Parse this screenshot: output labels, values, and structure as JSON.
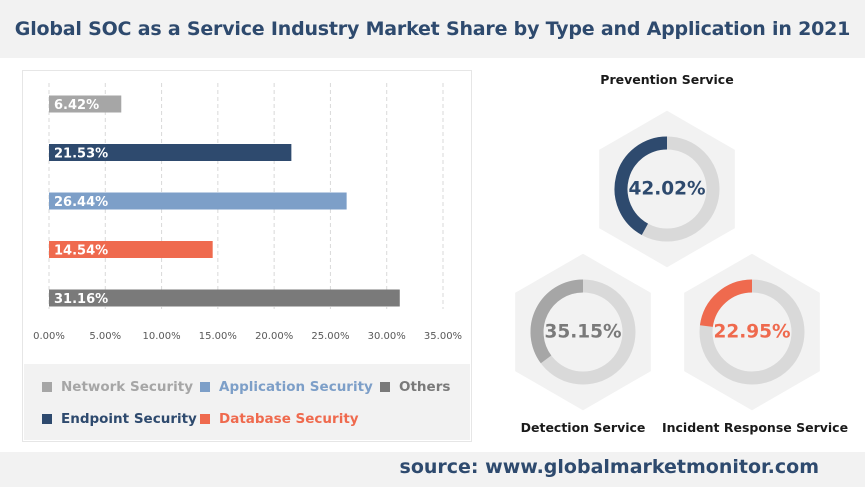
{
  "title": "Global SOC as a Service Industry Market Share by Type and Application in 2021",
  "source": "source: www.globalmarketmonitor.com",
  "colors": {
    "network": "#a6a6a6",
    "endpoint": "#2e4a6e",
    "application": "#7d9fc8",
    "database": "#ef6a4e",
    "others": "#7a7a7a",
    "track": "#d9d9d9",
    "hexagon": "#f2f2f2"
  },
  "legend": [
    {
      "label": "Network Security",
      "color": "#a6a6a6"
    },
    {
      "label": "Application Security",
      "color": "#7d9fc8"
    },
    {
      "label": "Others",
      "color": "#7a7a7a"
    },
    {
      "label": "Endpoint Security",
      "color": "#2e4a6e"
    },
    {
      "label": "Database Security",
      "color": "#ef6a4e"
    }
  ],
  "chart_data": [
    {
      "type": "bar",
      "orientation": "horizontal",
      "title": "",
      "categories": [
        "Network Security",
        "Endpoint Security",
        "Application Security",
        "Database Security",
        "Others"
      ],
      "values": [
        6.42,
        21.53,
        26.44,
        14.54,
        31.16
      ],
      "data_labels": [
        "6.42%",
        "21.53%",
        "26.44%",
        "14.54%",
        "31.16%"
      ],
      "colors": [
        "#a6a6a6",
        "#2e4a6e",
        "#7d9fc8",
        "#ef6a4e",
        "#7a7a7a"
      ],
      "xlim": [
        0,
        35
      ],
      "x_ticks": [
        "0.00%",
        "5.00%",
        "10.00%",
        "15.00%",
        "20.00%",
        "25.00%",
        "30.00%",
        "35.00%"
      ],
      "x_tick_values": [
        0,
        5,
        10,
        15,
        20,
        25,
        30,
        35
      ],
      "grid": "vertical dashed",
      "legend": "bottom"
    },
    {
      "type": "pie",
      "style": "donut",
      "title": "Prevention Service",
      "values": [
        42.02
      ],
      "data_label": "42.02%",
      "color": "#2e4a6e"
    },
    {
      "type": "pie",
      "style": "donut",
      "title": "Detection Service",
      "values": [
        35.15
      ],
      "data_label": "35.15%",
      "color": "#a6a6a6"
    },
    {
      "type": "pie",
      "style": "donut",
      "title": "Incident Response Service",
      "values": [
        22.95
      ],
      "data_label": "22.95%",
      "color": "#ef6a4e"
    }
  ]
}
